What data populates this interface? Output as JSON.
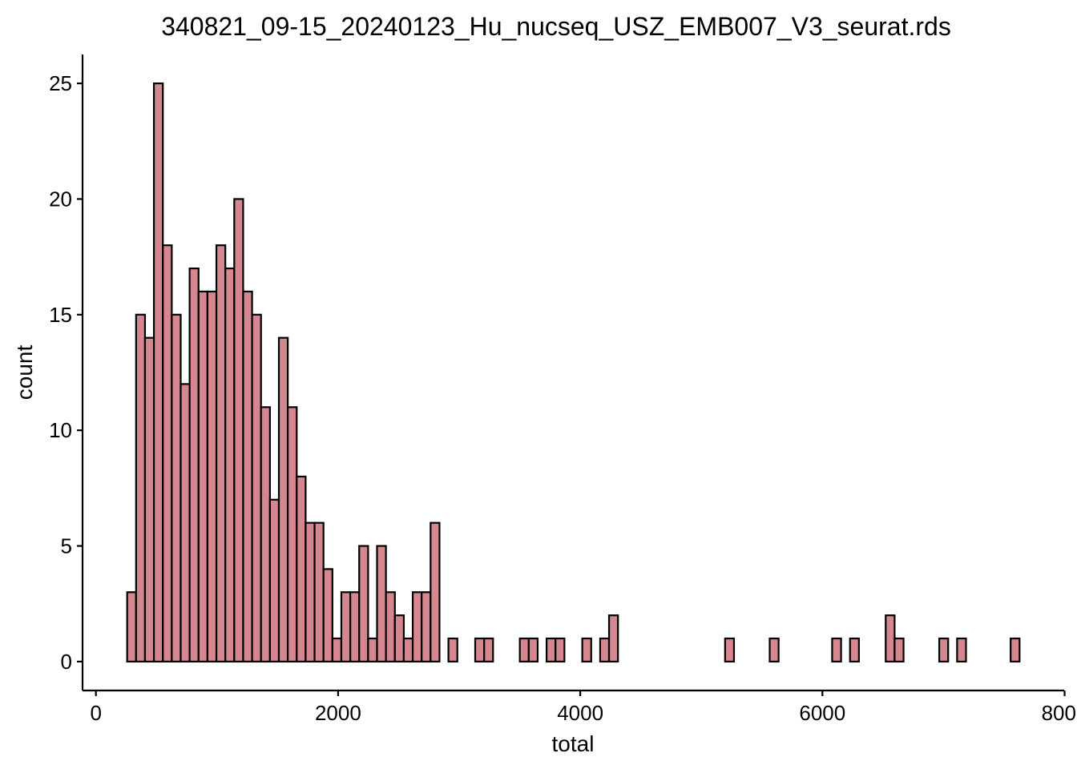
{
  "chart_data": {
    "type": "histogram",
    "title": "340821_09-15_20240123_Hu_nucseq_USZ_EMB007_V3_seurat.rds",
    "x_label": "total",
    "y_label": "count",
    "color": "#d4878f",
    "edge_color": "#000000",
    "bins": [
      258,
      331.7,
      405.4,
      479.1,
      552.8,
      626.5,
      700.2,
      773.9,
      847.6,
      921.3,
      995,
      1068.7,
      1142.4,
      1216.1,
      1289.8,
      1363.5,
      1437.2,
      1510.9,
      1584.6,
      1658.3,
      1732,
      1805.7,
      1879.4,
      1953.1,
      2026.8,
      2100.5,
      2174.2,
      2247.9,
      2321.6,
      2395.3,
      2469,
      2542.7,
      2616.4,
      2690.1,
      2763.8,
      2837.5,
      2911.2,
      2984.9,
      3058.6,
      3132.3,
      3206,
      3279.7,
      3353.4,
      3427.1,
      3500.8,
      3574.5,
      3648.2,
      3721.9,
      3795.6,
      3869.3,
      3943,
      4016.7,
      4090.4,
      4164.1,
      4237.8,
      4311.5,
      4385.2,
      4458.9,
      4532.6,
      4606.3,
      4680,
      4753.7,
      4827.4,
      4901.1,
      4974.8,
      5048.5,
      5122.2,
      5195.9,
      5269.6,
      5343.3,
      5417,
      5490.7,
      5564.4,
      5638.1,
      5711.8,
      5785.5,
      5859.2,
      5932.9,
      6006.6,
      6080.3,
      6154,
      6227.7,
      6301.4,
      6375.1,
      6448.8,
      6522.5,
      6596.2,
      6669.9,
      6743.6,
      6817.3,
      6891,
      6964.7,
      7038.4,
      7112.1,
      7185.8,
      7259.5,
      7333.2,
      7406.9,
      7480.6,
      7554.3,
      7628
    ],
    "values": [
      3,
      15,
      14,
      25,
      18,
      15,
      12,
      17,
      16,
      16,
      18,
      17,
      20,
      16,
      15,
      11,
      7,
      14,
      11,
      8,
      6,
      6,
      4,
      1,
      3,
      3,
      5,
      1,
      5,
      3,
      2,
      1,
      3,
      3,
      6,
      0,
      1,
      0,
      0,
      1,
      1,
      0,
      0,
      0,
      1,
      1,
      0,
      1,
      1,
      0,
      0,
      1,
      0,
      1,
      2,
      0,
      0,
      0,
      0,
      0,
      0,
      0,
      0,
      0,
      0,
      0,
      0,
      1,
      0,
      0,
      0,
      0,
      1,
      0,
      0,
      0,
      0,
      0,
      0,
      1,
      0,
      1,
      0,
      0,
      0,
      2,
      1,
      0,
      0,
      0,
      0,
      1,
      0,
      1,
      0,
      0,
      0,
      0,
      0,
      1
    ],
    "xlim": [
      -110.5,
      7996.5
    ],
    "ylim": [
      -1.25,
      26.25
    ],
    "xticks": [
      0,
      2000,
      4000,
      6000,
      8000
    ],
    "yticks": [
      0,
      5,
      10,
      15,
      20,
      25
    ],
    "grid": false
  }
}
